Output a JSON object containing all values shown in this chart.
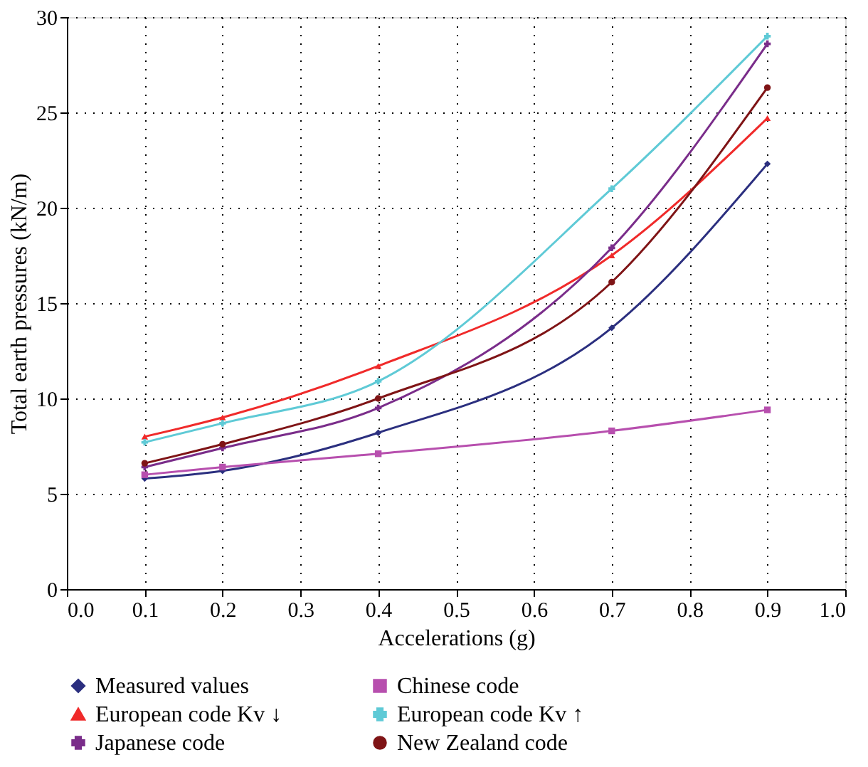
{
  "chart_data": {
    "type": "line",
    "xlabel": "Accelerations (g)",
    "ylabel": "Total earth pressures (kN/m)",
    "x": [
      0.1,
      0.2,
      0.4,
      0.7,
      0.9
    ],
    "xlim": [
      0.0,
      1.0
    ],
    "xticks": [
      {
        "value": 0.0,
        "label": "0.0"
      },
      0.1,
      0.2,
      0.3,
      0.4,
      0.5,
      0.6,
      0.7,
      0.8,
      0.9,
      {
        "value": 1.0,
        "label": "1.0"
      }
    ],
    "ylim": [
      0,
      30
    ],
    "yticks": [
      0,
      5,
      10,
      15,
      20,
      25,
      30
    ],
    "grid": true,
    "legend": "bottom",
    "series": [
      {
        "name": "Measured values",
        "color": "#2b2f7f",
        "marker": "diamond",
        "values": [
          5.8,
          6.2,
          8.2,
          13.7,
          22.3
        ]
      },
      {
        "name": "Chinese code",
        "color": "#b74fae",
        "marker": "square",
        "values": [
          6.0,
          6.4,
          7.1,
          8.3,
          9.4
        ]
      },
      {
        "name": "European code Kv ↓",
        "color": "#f02a2a",
        "marker": "triangle",
        "values": [
          8.0,
          9.0,
          11.7,
          17.5,
          24.7
        ]
      },
      {
        "name": "European code Kv ↑",
        "color": "#5fcad6",
        "marker": "cross",
        "values": [
          7.7,
          8.7,
          10.9,
          21.0,
          29.0
        ]
      },
      {
        "name": "Japanese code",
        "color": "#7a2d8a",
        "marker": "cross",
        "values": [
          6.4,
          7.4,
          9.5,
          17.9,
          28.6
        ]
      },
      {
        "name": "New Zealand code",
        "color": "#7f1416",
        "marker": "circle",
        "values": [
          6.6,
          7.6,
          10.0,
          16.1,
          26.3
        ]
      }
    ]
  }
}
